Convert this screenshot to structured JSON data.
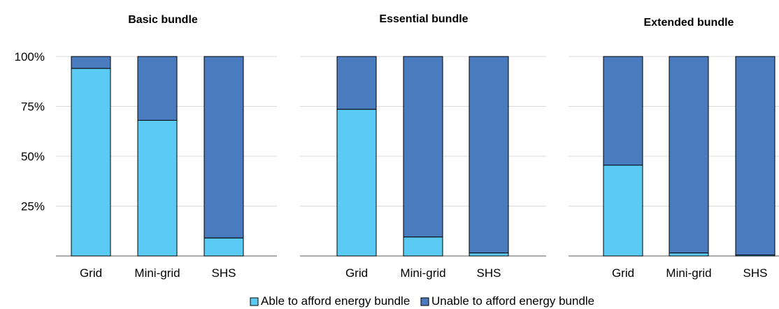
{
  "chart_data": {
    "type": "bar",
    "stacked": true,
    "ylim": [
      0,
      100
    ],
    "y_ticks": [
      "25%",
      "50%",
      "75%",
      "100%"
    ],
    "grid": true,
    "legend_position": "bottom",
    "colors": {
      "able": "#5BCBF5",
      "unable": "#4A7BBF",
      "grid_line": "#D9D9D9",
      "axis": "#595959"
    },
    "legend": [
      "Able to afford energy bundle",
      "Unable to afford energy bundle"
    ],
    "panels": [
      {
        "title": "Basic bundle",
        "categories": [
          "Grid",
          "Mini-grid",
          "SHS"
        ],
        "series": [
          {
            "name": "Able to afford energy bundle",
            "values": [
              94,
              68,
              9
            ]
          },
          {
            "name": "Unable to afford energy bundle",
            "values": [
              6,
              32,
              91
            ]
          }
        ]
      },
      {
        "title": "Essential bundle",
        "categories": [
          "Grid",
          "Mini-grid",
          "SHS"
        ],
        "series": [
          {
            "name": "Able to afford energy bundle",
            "values": [
              73.5,
              9.5,
              1.5
            ]
          },
          {
            "name": "Unable to afford energy bundle",
            "values": [
              26.5,
              90.5,
              98.5
            ]
          }
        ]
      },
      {
        "title": "Extended bundle",
        "categories": [
          "Grid",
          "Mini-grid",
          "SHS"
        ],
        "series": [
          {
            "name": "Able to afford energy bundle",
            "values": [
              45.5,
              1.5,
              0.5
            ]
          },
          {
            "name": "Unable to afford energy bundle",
            "values": [
              54.5,
              98.5,
              99.5
            ]
          }
        ]
      }
    ]
  }
}
